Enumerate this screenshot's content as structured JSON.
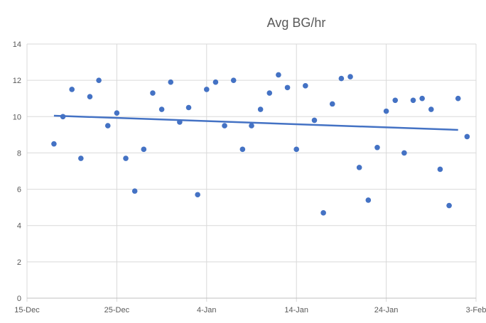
{
  "chart_data": {
    "type": "scatter",
    "title": "Avg BG/hr",
    "xlabel": "",
    "ylabel": "",
    "xlim": [
      "2020-12-15",
      "2021-02-03"
    ],
    "ylim": [
      0,
      14
    ],
    "x_ticks": [
      "15-Dec",
      "25-Dec",
      "4-Jan",
      "14-Jan",
      "24-Jan",
      "3-Feb"
    ],
    "y_ticks": [
      0,
      2,
      4,
      6,
      8,
      10,
      12,
      14
    ],
    "grid": true,
    "legend": "none",
    "colors": {
      "points": "#4472c4",
      "trendline": "#4472c4",
      "grid": "#d9d9d9",
      "axis_text": "#595959"
    },
    "series": [
      {
        "x": [
          "2020-12-18",
          "2020-12-19",
          "2020-12-20",
          "2020-12-21",
          "2020-12-22",
          "2020-12-23",
          "2020-12-24",
          "2020-12-25",
          "2020-12-26",
          "2020-12-27",
          "2020-12-28",
          "2020-12-29",
          "2020-12-30",
          "2020-12-31",
          "2021-01-01",
          "2021-01-02",
          "2021-01-03",
          "2021-01-04",
          "2021-01-05",
          "2021-01-06",
          "2021-01-07",
          "2021-01-08",
          "2021-01-09",
          "2021-01-10",
          "2021-01-11",
          "2021-01-12",
          "2021-01-13",
          "2021-01-14",
          "2021-01-15",
          "2021-01-16",
          "2021-01-17",
          "2021-01-18",
          "2021-01-19",
          "2021-01-20",
          "2021-01-21",
          "2021-01-22",
          "2021-01-23",
          "2021-01-24",
          "2021-01-25",
          "2021-01-26",
          "2021-01-27",
          "2021-01-28",
          "2021-01-29",
          "2021-01-30",
          "2021-01-31",
          "2021-02-01",
          "2021-02-02"
        ],
        "y": [
          8.5,
          10.0,
          11.5,
          7.7,
          11.1,
          12.0,
          9.5,
          10.2,
          7.7,
          5.9,
          8.2,
          11.3,
          10.4,
          11.9,
          9.7,
          10.5,
          5.7,
          11.5,
          11.9,
          9.5,
          12.0,
          8.2,
          9.5,
          10.4,
          11.3,
          12.3,
          11.6,
          8.2,
          11.7,
          9.8,
          4.7,
          10.7,
          12.1,
          12.2,
          7.2,
          5.4,
          8.3,
          10.3,
          10.9,
          8.0,
          10.9,
          11.0,
          10.4,
          7.1,
          5.1,
          11.0,
          8.9
        ]
      }
    ],
    "trendline": {
      "type": "linear",
      "x": [
        "2020-12-18",
        "2021-02-01"
      ],
      "y": [
        10.05,
        9.27
      ]
    }
  }
}
